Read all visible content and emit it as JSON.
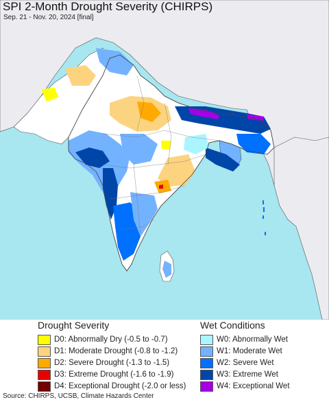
{
  "header": {
    "title": "SPI 2-Month Drought Severity (CHIRPS)",
    "subtitle": "Sep. 21 - Nov. 20, 2024 [final]"
  },
  "colors": {
    "ocean": "#a8e6f0",
    "outside_land": "#ececf0",
    "near_normal": "#ffffff",
    "d0": "#ffff00",
    "d1": "#fcd37f",
    "d2": "#ffaa00",
    "d3": "#e60000",
    "d4": "#730000",
    "w0": "#aaf5ff",
    "w1": "#73b2ff",
    "w2": "#0070ff",
    "w3": "#0046a8",
    "w4": "#a500e6"
  },
  "legend": {
    "drought": {
      "heading": "Drought Severity",
      "items": [
        {
          "label": "D0: Abnormally Dry (-0.5 to -0.7)",
          "color": "#ffff00"
        },
        {
          "label": "D1: Moderate Drought (-0.8 to -1.2)",
          "color": "#fcd37f"
        },
        {
          "label": "D2: Severe Drought (-1.3 to -1.5)",
          "color": "#ffaa00"
        },
        {
          "label": "D3: Extreme Drought (-1.6 to -1.9)",
          "color": "#e60000"
        },
        {
          "label": "D4: Exceptional Drought (-2.0 or less)",
          "color": "#730000"
        }
      ]
    },
    "wet": {
      "heading": "Wet Conditions",
      "items": [
        {
          "label": "W0: Abnormally Wet",
          "color": "#aaf5ff"
        },
        {
          "label": "W1: Moderate Wet",
          "color": "#73b2ff"
        },
        {
          "label": "W2: Severe Wet",
          "color": "#0070ff"
        },
        {
          "label": "W3: Extreme Wet",
          "color": "#0046a8"
        },
        {
          "label": "W4: Exceptional Wet",
          "color": "#a500e6"
        }
      ]
    }
  },
  "footer": {
    "source": "Source: CHIRPS, UCSB, Climate Hazards Center"
  }
}
